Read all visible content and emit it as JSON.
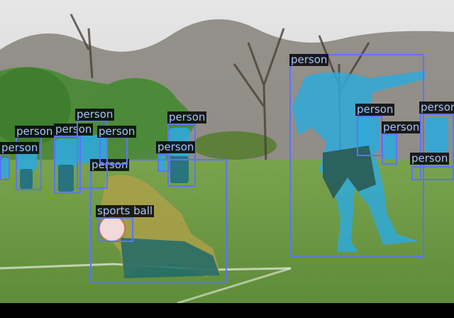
{
  "image": {
    "colors": {
      "sky": "#dedfdf",
      "trees": "#6f6a64",
      "grass": "#6e9a45",
      "jersey": "#2fa9d9",
      "box": "#5b74ff",
      "label_text": "#a7c4ff",
      "label_bg": "#000000"
    }
  },
  "detections": [
    {
      "label": "person"
    },
    {
      "label": "person"
    },
    {
      "label": "sports ball"
    },
    {
      "label": "person"
    },
    {
      "label": "person"
    },
    {
      "label": "person"
    },
    {
      "label": "person"
    },
    {
      "label": "person"
    },
    {
      "label": "person"
    },
    {
      "label": "person"
    },
    {
      "label": "person"
    },
    {
      "label": "person"
    },
    {
      "label": "person"
    },
    {
      "label": "person"
    }
  ]
}
